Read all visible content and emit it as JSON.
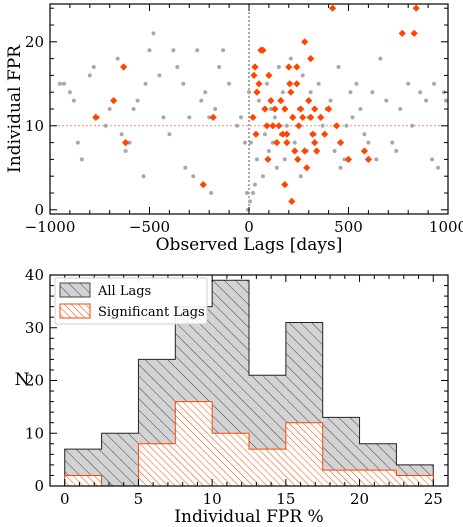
{
  "chart_data": [
    {
      "type": "scatter",
      "xlabel": "Observed Lags [days]",
      "ylabel": "Individual FPR",
      "xlim": [
        -1000,
        1000
      ],
      "ylim": [
        -0.5,
        24.5
      ],
      "xticks": [
        -1000,
        -500,
        0,
        500,
        1000
      ],
      "yticks": [
        0,
        10,
        20
      ],
      "tick_labels_x": [
        "−1000",
        "−500",
        "0",
        "500",
        "1000"
      ],
      "tick_labels_y": [
        "0",
        "10",
        "20"
      ],
      "reference_lines": {
        "vertical_x": 0,
        "horizontal_y": 10
      },
      "colors": {
        "all": "#a8a8a8",
        "significant": "#ff4500",
        "vline": "#555555",
        "hline": "#ff8c69"
      },
      "series": [
        {
          "marker": "circle",
          "points": [
            [
              -950,
              15
            ],
            [
              -930,
              15
            ],
            [
              -880,
              13
            ],
            [
              -860,
              8
            ],
            [
              -840,
              6
            ],
            [
              -800,
              16
            ],
            [
              -780,
              17
            ],
            [
              -760,
              11
            ],
            [
              -720,
              10
            ],
            [
              -700,
              12
            ],
            [
              -660,
              18
            ],
            [
              -640,
              9
            ],
            [
              -620,
              7
            ],
            [
              -600,
              8
            ],
            [
              -580,
              12
            ],
            [
              -560,
              13
            ],
            [
              -530,
              4
            ],
            [
              -520,
              15
            ],
            [
              -500,
              19
            ],
            [
              -480,
              21
            ],
            [
              -450,
              16
            ],
            [
              -430,
              11
            ],
            [
              -400,
              9
            ],
            [
              -380,
              19
            ],
            [
              -360,
              17
            ],
            [
              -330,
              15
            ],
            [
              -320,
              5
            ],
            [
              -300,
              11
            ],
            [
              -280,
              4
            ],
            [
              -260,
              19
            ],
            [
              -240,
              13
            ],
            [
              -220,
              14
            ],
            [
              -200,
              11
            ],
            [
              -190,
              2
            ],
            [
              -170,
              12
            ],
            [
              -150,
              17
            ],
            [
              -130,
              19
            ],
            [
              -100,
              15
            ],
            [
              -60,
              10
            ],
            [
              -40,
              11
            ],
            [
              -20,
              8
            ],
            [
              -10,
              2
            ],
            [
              -5,
              0
            ],
            [
              0,
              14
            ],
            [
              5,
              1
            ],
            [
              10,
              8
            ],
            [
              20,
              2
            ],
            [
              30,
              3
            ],
            [
              40,
              6
            ],
            [
              50,
              13
            ],
            [
              60,
              19
            ],
            [
              70,
              4
            ],
            [
              80,
              9
            ],
            [
              90,
              15
            ],
            [
              100,
              7
            ],
            [
              110,
              12
            ],
            [
              120,
              8
            ],
            [
              130,
              11
            ],
            [
              140,
              5
            ],
            [
              150,
              17
            ],
            [
              160,
              9
            ],
            [
              170,
              14
            ],
            [
              180,
              6
            ],
            [
              190,
              10
            ],
            [
              210,
              18
            ],
            [
              230,
              8
            ],
            [
              250,
              12
            ],
            [
              260,
              4
            ],
            [
              270,
              16
            ],
            [
              290,
              7
            ],
            [
              300,
              11
            ],
            [
              310,
              14
            ],
            [
              330,
              9
            ],
            [
              350,
              15
            ],
            [
              370,
              10
            ],
            [
              390,
              12
            ],
            [
              410,
              13
            ],
            [
              430,
              7
            ],
            [
              450,
              17
            ],
            [
              460,
              5
            ],
            [
              480,
              6
            ],
            [
              490,
              10
            ],
            [
              510,
              14
            ],
            [
              520,
              11
            ],
            [
              540,
              15
            ],
            [
              560,
              12
            ],
            [
              580,
              9
            ],
            [
              600,
              8
            ],
            [
              620,
              14
            ],
            [
              640,
              6
            ],
            [
              660,
              18
            ],
            [
              690,
              13
            ],
            [
              720,
              8
            ],
            [
              740,
              7
            ],
            [
              760,
              12
            ],
            [
              800,
              15
            ],
            [
              820,
              10
            ],
            [
              860,
              14
            ],
            [
              890,
              13
            ],
            [
              920,
              6
            ],
            [
              950,
              5
            ],
            [
              980,
              14
            ],
            [
              930,
              15
            ],
            [
              990,
              13
            ],
            [
              -900,
              14
            ]
          ]
        },
        {
          "marker": "diamond",
          "points": [
            [
              -770,
              11
            ],
            [
              -680,
              13
            ],
            [
              -630,
              17
            ],
            [
              -620,
              8
            ],
            [
              -230,
              3
            ],
            [
              -180,
              11
            ],
            [
              20,
              11
            ],
            [
              25,
              16
            ],
            [
              30,
              17
            ],
            [
              35,
              9
            ],
            [
              40,
              14
            ],
            [
              50,
              15
            ],
            [
              60,
              19
            ],
            [
              70,
              19
            ],
            [
              80,
              12
            ],
            [
              90,
              10
            ],
            [
              95,
              6
            ],
            [
              100,
              16
            ],
            [
              110,
              13
            ],
            [
              120,
              10
            ],
            [
              130,
              12
            ],
            [
              140,
              8
            ],
            [
              150,
              10
            ],
            [
              160,
              13
            ],
            [
              170,
              9
            ],
            [
              180,
              12
            ],
            [
              190,
              8
            ],
            [
              200,
              17
            ],
            [
              205,
              15
            ],
            [
              210,
              14
            ],
            [
              215,
              1
            ],
            [
              220,
              11
            ],
            [
              230,
              7
            ],
            [
              240,
              15
            ],
            [
              245,
              6
            ],
            [
              250,
              10
            ],
            [
              260,
              12
            ],
            [
              270,
              11
            ],
            [
              280,
              7
            ],
            [
              290,
              5
            ],
            [
              300,
              13
            ],
            [
              310,
              11
            ],
            [
              320,
              9
            ],
            [
              330,
              8
            ],
            [
              340,
              7
            ],
            [
              360,
              11
            ],
            [
              380,
              9
            ],
            [
              400,
              12
            ],
            [
              420,
              24
            ],
            [
              440,
              10
            ],
            [
              460,
              8
            ],
            [
              500,
              6
            ],
            [
              580,
              7
            ],
            [
              600,
              6
            ],
            [
              770,
              21
            ],
            [
              830,
              21
            ],
            [
              840,
              24
            ],
            [
              310,
              18
            ],
            [
              280,
              20
            ],
            [
              190,
              9
            ],
            [
              240,
              17
            ],
            [
              180,
              3
            ],
            [
              330,
              12
            ]
          ]
        }
      ]
    },
    {
      "type": "histogram",
      "xlabel": "Individual FPR %",
      "ylabel": "N",
      "xlim": [
        -1,
        26
      ],
      "ylim": [
        0,
        40
      ],
      "xticks": [
        0,
        5,
        10,
        15,
        20,
        25
      ],
      "yticks": [
        0,
        10,
        20,
        30,
        40
      ],
      "tick_labels_x": [
        "0",
        "5",
        "10",
        "15",
        "20",
        "25"
      ],
      "tick_labels_y": [
        "0",
        "10",
        "20",
        "30",
        "40"
      ],
      "bin_edges": [
        0,
        2.5,
        5,
        7.5,
        10,
        12.5,
        15,
        17.5,
        20,
        22.5,
        25
      ],
      "legend_position": "top-left",
      "colors": {
        "all_fill": "#d3d3d3",
        "all_hatch": "#555555",
        "sig_hatch": "#ff4500"
      },
      "series": [
        {
          "name": "All Lags",
          "values": [
            7,
            10,
            24,
            34,
            39,
            21,
            31,
            13,
            8,
            4
          ]
        },
        {
          "name": "Significant Lags",
          "values": [
            2,
            0,
            8,
            16,
            10,
            7,
            12,
            3,
            3,
            2
          ]
        }
      ]
    }
  ]
}
